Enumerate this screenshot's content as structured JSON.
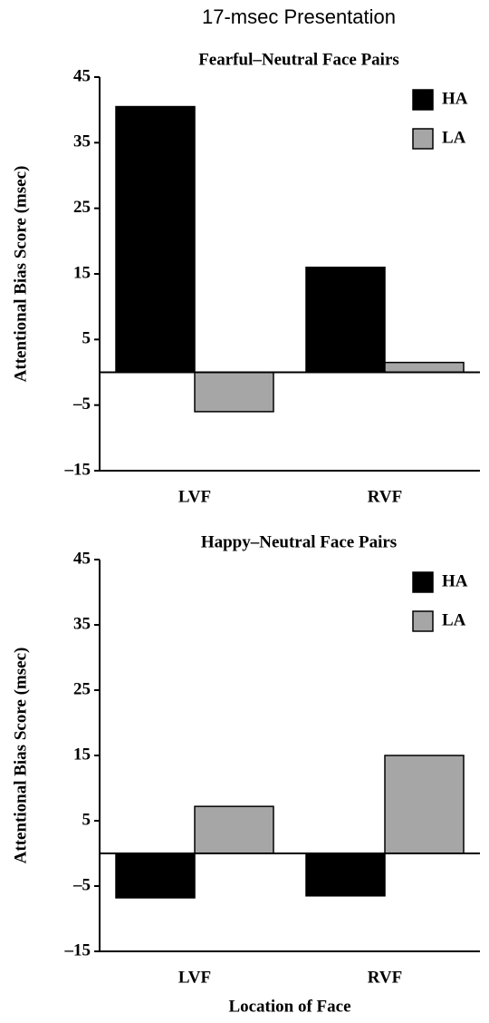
{
  "title": "17-msec Presentation",
  "chart_data": [
    {
      "type": "bar",
      "title": "Fearful–Neutral Face Pairs",
      "y_label": "Attentional Bias Score (msec)",
      "categories": [
        "LVF",
        "RVF"
      ],
      "series": [
        {
          "name": "HA",
          "color": "#000000",
          "values": [
            40.5,
            16
          ]
        },
        {
          "name": "LA",
          "color": "#a6a6a6",
          "values": [
            -6,
            1.5
          ]
        }
      ],
      "ylim": [
        -15,
        45
      ],
      "yticks": [
        45,
        35,
        25,
        15,
        5,
        {
          "value": -5,
          "label": "–5"
        },
        {
          "value": -15,
          "label": "–15"
        }
      ],
      "legend": "upper right"
    },
    {
      "type": "bar",
      "title": "Happy–Neutral Face Pairs",
      "y_label": "Attentional Bias Score (msec)",
      "x_label": "Location of Face",
      "categories": [
        "LVF",
        "RVF"
      ],
      "series": [
        {
          "name": "HA",
          "color": "#000000",
          "values": [
            -6.8,
            -6.5
          ]
        },
        {
          "name": "LA",
          "color": "#a6a6a6",
          "values": [
            7.2,
            15
          ]
        }
      ],
      "ylim": [
        -15,
        45
      ],
      "yticks": [
        45,
        35,
        25,
        15,
        5,
        {
          "value": -5,
          "label": "–5"
        },
        {
          "value": -15,
          "label": "–15"
        }
      ],
      "legend": "upper right"
    }
  ]
}
